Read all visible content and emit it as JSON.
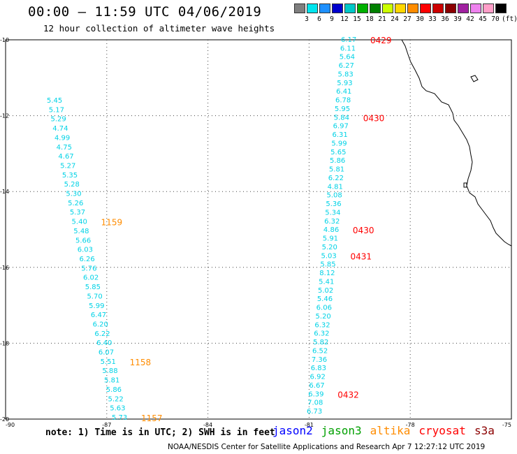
{
  "title": "00:00 – 11:59 UTC 04/06/2019",
  "subtitle": "12 hour collection of altimeter wave heights",
  "color_scale": {
    "labels": [
      "3",
      "6",
      "9",
      "12",
      "15",
      "18",
      "21",
      "24",
      "27",
      "30",
      "33",
      "36",
      "39",
      "42",
      "45",
      "70",
      "(ft)"
    ],
    "colors": [
      "#7f7f7f",
      "#00e5ee",
      "#1e90ff",
      "#0000cd",
      "#00c8c8",
      "#00b000",
      "#008000",
      "#ccff00",
      "#ffd700",
      "#ff8c00",
      "#ff0000",
      "#cd0000",
      "#8b0000",
      "#a020a0",
      "#ee82ee",
      "#ff9ec8",
      "#000000"
    ]
  },
  "axes": {
    "lon_labels": [
      "-90",
      "-87",
      "-84",
      "-81",
      "-78",
      "-75"
    ],
    "lat_labels": [
      "-10",
      "-12",
      "-14",
      "-16",
      "-18",
      "-20"
    ]
  },
  "tracks": {
    "track_west": {
      "color": "#00d2e6",
      "values": [
        "5.45",
        "5.17",
        "5.29",
        "4.74",
        "4.99",
        "4.75",
        "4.67",
        "5.27",
        "5.35",
        "5.28",
        "5.30",
        "5.26",
        "5.37",
        "5.40",
        "5.48",
        "5.66",
        "6.03",
        "6.26",
        "5.76",
        "6.02",
        "5.85",
        "5.70",
        "5.99",
        "6.47",
        "6.20",
        "6.22",
        "6.40",
        "6.07",
        "5.51",
        "5.88",
        "5.81",
        "5.86",
        "5.22",
        "5.63",
        "5.73"
      ],
      "time_labels": [
        {
          "text": "1159",
          "color": "#ff8c00",
          "index": 13
        },
        {
          "text": "1158",
          "color": "#ff8c00",
          "index": 28
        },
        {
          "text": "1157",
          "color": "#ff8c00",
          "index": 34
        }
      ]
    },
    "track_east": {
      "color": "#00d2e6",
      "values": [
        "6.17",
        "6.11",
        "5.64",
        "6.27",
        "5.83",
        "5.93",
        "6.41",
        "6.78",
        "5.95",
        "5.84",
        "6.97",
        "6.31",
        "5.99",
        "5.65",
        "5.86",
        "5.81",
        "6.22",
        "4.81",
        "5.08",
        "5.36",
        "5.34",
        "6.32",
        "4.86",
        "5.91",
        "5.20",
        "5.03",
        "5.85",
        "8.12",
        "5.41",
        "5.02",
        "5.46",
        "6.06",
        "5.20",
        "6.32",
        "6.32",
        "5.82",
        "6.52",
        "7.36",
        "6.83",
        "6.92",
        "6.67",
        "6.39",
        "7.08",
        "6.73"
      ],
      "time_labels": [
        {
          "text": "0429",
          "color": "#ff0000",
          "index": 0
        },
        {
          "text": "0430",
          "color": "#ff0000",
          "index": 9
        },
        {
          "text": "0430",
          "color": "#ff0000",
          "index": 22
        },
        {
          "text": "0431",
          "color": "#ff0000",
          "index": 25
        },
        {
          "text": "0432",
          "color": "#ff0000",
          "index": 41
        }
      ]
    }
  },
  "note": "note: 1) Time is in UTC; 2) SWH is in feet",
  "legend": [
    {
      "name": "jason2",
      "color": "#0000ff"
    },
    {
      "name": "jason3",
      "color": "#00a000"
    },
    {
      "name": "altika",
      "color": "#ff8c00"
    },
    {
      "name": "cryosat",
      "color": "#ff0000"
    },
    {
      "name": "s3a",
      "color": "#8b0000"
    }
  ],
  "credit": "NOAA/NESDIS Center for Satellite Applications and Research   Apr  7 12:27:12 UTC 2019"
}
